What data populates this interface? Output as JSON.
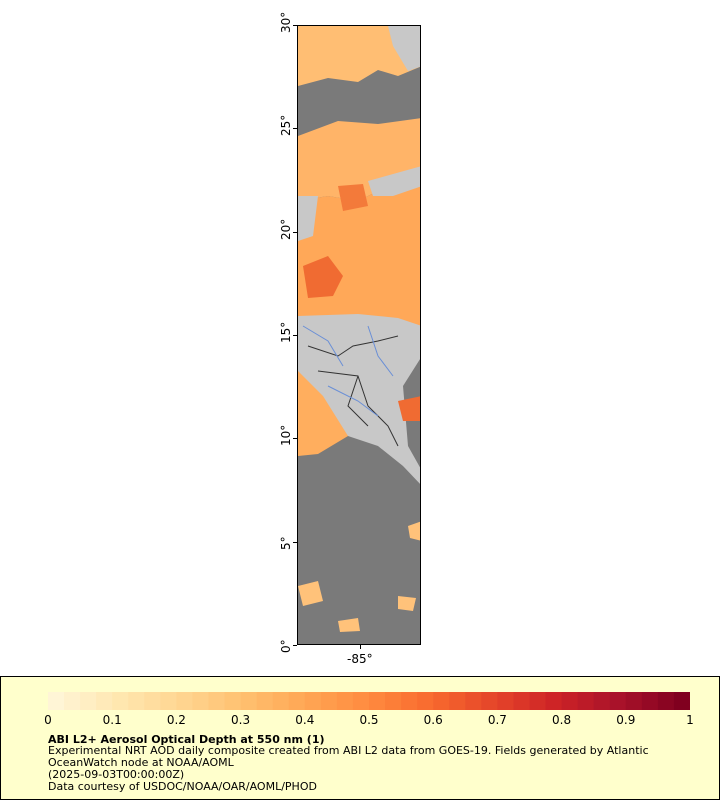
{
  "map": {
    "lat_ticks": [
      "0°",
      "5°",
      "10°",
      "15°",
      "20°",
      "25°",
      "30°"
    ],
    "lon_ticks": [
      "-85°"
    ],
    "colors": {
      "ocean_no_data": "#7a7a7a",
      "land": "#c8c8c8",
      "borders": "#333333",
      "rivers": "#6a8fd6"
    }
  },
  "legend": {
    "scale_labels": [
      "0",
      "0.1",
      "0.2",
      "0.3",
      "0.4",
      "0.5",
      "0.6",
      "0.7",
      "0.8",
      "0.9",
      "1"
    ],
    "title": "ABI L2+ Aerosol Optical Depth at 550 nm (1)",
    "line1": "Experimental NRT AOD daily composite created from ABI L2 data from GOES-19. Fields generated by Atlantic OceanWatch node at NOAA/AOML",
    "line2": "(2025-09-03T00:00:00Z)",
    "line3": "Data courtesy of USDOC/NOAA/OAR/AOML/PHOD",
    "colormap": [
      "#fff5d6",
      "#ffe7b0",
      "#ffd591",
      "#ffc06f",
      "#ffa654",
      "#ff8a3f",
      "#f86a2e",
      "#e5452a",
      "#cd2226",
      "#a8122a",
      "#80001f"
    ]
  }
}
